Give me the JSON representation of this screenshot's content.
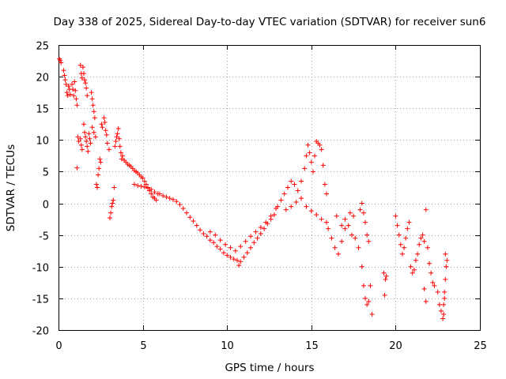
{
  "chart_data": {
    "type": "scatter",
    "title": "Day 338 of 2025, Sidereal Day-to-day VTEC variation (SDTVAR) for receiver sun6",
    "xlabel": "GPS time / hours",
    "ylabel": "SDTVAR / TECUs",
    "xlim": [
      0,
      25
    ],
    "ylim": [
      -20,
      25
    ],
    "xticks": [
      0,
      5,
      10,
      15,
      20,
      25
    ],
    "yticks": [
      -20,
      -15,
      -10,
      -5,
      0,
      5,
      10,
      15,
      20,
      25
    ],
    "grid": true,
    "marker": "+",
    "color": "#ff0000",
    "series": [
      {
        "name": "SDTVAR",
        "points": [
          [
            0.05,
            22.8
          ],
          [
            0.1,
            22.6
          ],
          [
            0.15,
            22.2
          ],
          [
            0.3,
            21.0
          ],
          [
            0.35,
            20.2
          ],
          [
            0.4,
            19.5
          ],
          [
            0.45,
            18.8
          ],
          [
            0.5,
            17.5
          ],
          [
            0.55,
            17.0
          ],
          [
            0.6,
            18.5
          ],
          [
            0.65,
            18.0
          ],
          [
            0.7,
            17.2
          ],
          [
            0.8,
            18.8
          ],
          [
            0.85,
            18.0
          ],
          [
            0.9,
            17.0
          ],
          [
            0.95,
            19.2
          ],
          [
            1.0,
            17.8
          ],
          [
            1.05,
            16.5
          ],
          [
            1.1,
            15.5
          ],
          [
            1.15,
            10.5
          ],
          [
            1.2,
            9.8
          ],
          [
            1.1,
            5.6
          ],
          [
            1.3,
            10.2
          ],
          [
            1.35,
            9.2
          ],
          [
            1.4,
            8.5
          ],
          [
            1.3,
            21.8
          ],
          [
            1.35,
            20.5
          ],
          [
            1.4,
            19.8
          ],
          [
            1.45,
            21.5
          ],
          [
            1.5,
            20.5
          ],
          [
            1.55,
            19.5
          ],
          [
            1.6,
            19.0
          ],
          [
            1.65,
            18.2
          ],
          [
            1.7,
            17.0
          ],
          [
            1.5,
            12.5
          ],
          [
            1.55,
            11.2
          ],
          [
            1.6,
            10.5
          ],
          [
            1.65,
            9.8
          ],
          [
            1.7,
            9.0
          ],
          [
            1.75,
            8.2
          ],
          [
            1.8,
            11.0
          ],
          [
            1.85,
            10.2
          ],
          [
            1.9,
            9.5
          ],
          [
            1.95,
            17.5
          ],
          [
            2.0,
            16.5
          ],
          [
            2.05,
            15.5
          ],
          [
            2.1,
            14.5
          ],
          [
            2.15,
            13.5
          ],
          [
            2.0,
            12.0
          ],
          [
            2.1,
            11.2
          ],
          [
            2.2,
            10.5
          ],
          [
            2.25,
            3.0
          ],
          [
            2.3,
            2.5
          ],
          [
            2.35,
            4.5
          ],
          [
            2.4,
            5.5
          ],
          [
            2.45,
            7.0
          ],
          [
            2.5,
            6.5
          ],
          [
            2.55,
            12.5
          ],
          [
            2.6,
            12.0
          ],
          [
            2.7,
            13.5
          ],
          [
            2.75,
            12.8
          ],
          [
            2.8,
            11.5
          ],
          [
            2.85,
            10.8
          ],
          [
            2.9,
            9.5
          ],
          [
            3.0,
            8.5
          ],
          [
            3.05,
            -2.3
          ],
          [
            3.1,
            -1.5
          ],
          [
            3.15,
            -0.5
          ],
          [
            3.2,
            0.0
          ],
          [
            3.25,
            0.5
          ],
          [
            3.3,
            2.5
          ],
          [
            3.35,
            9.0
          ],
          [
            3.4,
            9.8
          ],
          [
            3.45,
            10.5
          ],
          [
            3.5,
            11.0
          ],
          [
            3.55,
            11.8
          ],
          [
            3.6,
            10.2
          ],
          [
            3.65,
            9.0
          ],
          [
            3.7,
            8.0
          ],
          [
            3.75,
            7.0
          ],
          [
            3.8,
            7.5
          ],
          [
            3.9,
            6.8
          ],
          [
            4.0,
            6.5
          ],
          [
            4.1,
            6.2
          ],
          [
            4.2,
            6.0
          ],
          [
            4.3,
            5.8
          ],
          [
            4.4,
            5.5
          ],
          [
            4.5,
            5.2
          ],
          [
            4.6,
            5.0
          ],
          [
            4.7,
            4.8
          ],
          [
            4.8,
            4.5
          ],
          [
            4.9,
            4.2
          ],
          [
            5.0,
            4.0
          ],
          [
            5.1,
            3.5
          ],
          [
            5.2,
            3.0
          ],
          [
            5.3,
            2.5
          ],
          [
            5.4,
            2.0
          ],
          [
            5.5,
            1.5
          ],
          [
            5.6,
            1.0
          ],
          [
            5.7,
            0.8
          ],
          [
            5.8,
            0.5
          ],
          [
            4.5,
            3.0
          ],
          [
            4.7,
            2.8
          ],
          [
            4.9,
            2.7
          ],
          [
            5.1,
            2.6
          ],
          [
            5.3,
            2.4
          ],
          [
            5.5,
            2.2
          ],
          [
            5.7,
            1.8
          ],
          [
            5.9,
            1.5
          ],
          [
            6.0,
            1.5
          ],
          [
            6.2,
            1.2
          ],
          [
            6.4,
            1.0
          ],
          [
            6.6,
            0.8
          ],
          [
            6.8,
            0.6
          ],
          [
            7.0,
            0.3
          ],
          [
            7.2,
            -0.2
          ],
          [
            7.4,
            -0.8
          ],
          [
            7.6,
            -1.5
          ],
          [
            7.8,
            -2.2
          ],
          [
            8.0,
            -2.8
          ],
          [
            8.2,
            -3.5
          ],
          [
            8.4,
            -4.2
          ],
          [
            8.6,
            -4.8
          ],
          [
            8.8,
            -5.2
          ],
          [
            9.0,
            -5.8
          ],
          [
            9.2,
            -6.2
          ],
          [
            9.4,
            -6.8
          ],
          [
            9.6,
            -7.2
          ],
          [
            9.8,
            -7.8
          ],
          [
            10.0,
            -8.2
          ],
          [
            10.2,
            -8.5
          ],
          [
            10.4,
            -8.8
          ],
          [
            10.6,
            -9.0
          ],
          [
            10.7,
            -9.8
          ],
          [
            10.8,
            -9.2
          ],
          [
            11.0,
            -8.5
          ],
          [
            11.2,
            -7.8
          ],
          [
            11.4,
            -7.0
          ],
          [
            11.6,
            -6.2
          ],
          [
            11.8,
            -5.5
          ],
          [
            12.0,
            -4.8
          ],
          [
            12.2,
            -4.0
          ],
          [
            12.4,
            -3.2
          ],
          [
            12.6,
            -2.5
          ],
          [
            12.8,
            -1.8
          ],
          [
            9.0,
            -4.5
          ],
          [
            9.3,
            -5.0
          ],
          [
            9.6,
            -5.8
          ],
          [
            9.9,
            -6.5
          ],
          [
            10.2,
            -7.0
          ],
          [
            10.5,
            -7.5
          ],
          [
            10.8,
            -6.8
          ],
          [
            11.1,
            -6.0
          ],
          [
            11.4,
            -5.2
          ],
          [
            11.7,
            -4.5
          ],
          [
            12.0,
            -3.8
          ],
          [
            12.3,
            -3.0
          ],
          [
            12.6,
            -2.0
          ],
          [
            12.9,
            -0.8
          ],
          [
            13.0,
            -0.5
          ],
          [
            13.2,
            0.5
          ],
          [
            13.4,
            1.5
          ],
          [
            13.6,
            2.5
          ],
          [
            13.8,
            3.5
          ],
          [
            14.0,
            3.0
          ],
          [
            14.2,
            2.0
          ],
          [
            14.4,
            3.5
          ],
          [
            14.6,
            5.5
          ],
          [
            14.7,
            7.5
          ],
          [
            14.8,
            9.2
          ],
          [
            14.9,
            8.0
          ],
          [
            15.0,
            6.5
          ],
          [
            15.1,
            5.0
          ],
          [
            15.2,
            7.5
          ],
          [
            15.3,
            9.8
          ],
          [
            15.4,
            9.5
          ],
          [
            15.5,
            9.2
          ],
          [
            15.6,
            8.5
          ],
          [
            15.7,
            6.0
          ],
          [
            15.8,
            3.0
          ],
          [
            15.9,
            1.5
          ],
          [
            13.5,
            -1.0
          ],
          [
            13.8,
            -0.5
          ],
          [
            14.1,
            0.2
          ],
          [
            14.4,
            0.8
          ],
          [
            14.7,
            -0.5
          ],
          [
            15.0,
            -1.2
          ],
          [
            15.3,
            -1.8
          ],
          [
            15.6,
            -2.5
          ],
          [
            15.9,
            -3.0
          ],
          [
            16.0,
            -4.0
          ],
          [
            16.2,
            -5.5
          ],
          [
            16.4,
            -7.0
          ],
          [
            16.6,
            -8.0
          ],
          [
            16.8,
            -6.0
          ],
          [
            17.0,
            -4.0
          ],
          [
            17.2,
            -3.5
          ],
          [
            17.4,
            -5.0
          ],
          [
            17.6,
            -5.5
          ],
          [
            17.8,
            -7.0
          ],
          [
            18.0,
            -10.0
          ],
          [
            18.1,
            -13.0
          ],
          [
            18.2,
            -15.0
          ],
          [
            18.3,
            -16.0
          ],
          [
            18.4,
            -15.5
          ],
          [
            18.5,
            -13.0
          ],
          [
            18.6,
            -17.5
          ],
          [
            17.9,
            -1.0
          ],
          [
            18.0,
            0.0
          ],
          [
            18.1,
            -1.5
          ],
          [
            18.2,
            -3.0
          ],
          [
            18.3,
            -5.0
          ],
          [
            18.4,
            -6.0
          ],
          [
            16.5,
            -2.0
          ],
          [
            16.8,
            -3.5
          ],
          [
            17.0,
            -2.5
          ],
          [
            17.3,
            -1.5
          ],
          [
            17.5,
            -2.0
          ],
          [
            19.3,
            -11.0
          ],
          [
            19.4,
            -12.0
          ],
          [
            19.35,
            -14.5
          ],
          [
            19.45,
            -11.5
          ],
          [
            20.0,
            -2.0
          ],
          [
            20.1,
            -3.5
          ],
          [
            20.2,
            -5.0
          ],
          [
            20.3,
            -6.5
          ],
          [
            20.4,
            -8.0
          ],
          [
            20.5,
            -7.0
          ],
          [
            20.6,
            -5.5
          ],
          [
            20.7,
            -4.0
          ],
          [
            20.8,
            -3.0
          ],
          [
            20.9,
            -10.0
          ],
          [
            21.0,
            -11.0
          ],
          [
            21.1,
            -10.5
          ],
          [
            21.2,
            -9.0
          ],
          [
            21.3,
            -8.0
          ],
          [
            21.4,
            -6.5
          ],
          [
            21.5,
            -5.5
          ],
          [
            21.6,
            -5.0
          ],
          [
            21.7,
            -6.0
          ],
          [
            21.8,
            -1.0
          ],
          [
            21.9,
            -7.0
          ],
          [
            22.0,
            -9.5
          ],
          [
            22.1,
            -11.0
          ],
          [
            22.2,
            -12.5
          ],
          [
            22.3,
            -13.0
          ],
          [
            21.7,
            -13.5
          ],
          [
            21.8,
            -15.5
          ],
          [
            22.5,
            -14.0
          ],
          [
            22.6,
            -16.0
          ],
          [
            22.7,
            -17.0
          ],
          [
            22.8,
            -18.2
          ],
          [
            22.85,
            -17.5
          ],
          [
            22.9,
            -15.0
          ],
          [
            22.95,
            -12.0
          ],
          [
            23.0,
            -10.0
          ],
          [
            23.05,
            -9.0
          ],
          [
            22.95,
            -8.0
          ],
          [
            22.9,
            -14.0
          ],
          [
            22.85,
            -16.0
          ]
        ]
      }
    ]
  }
}
